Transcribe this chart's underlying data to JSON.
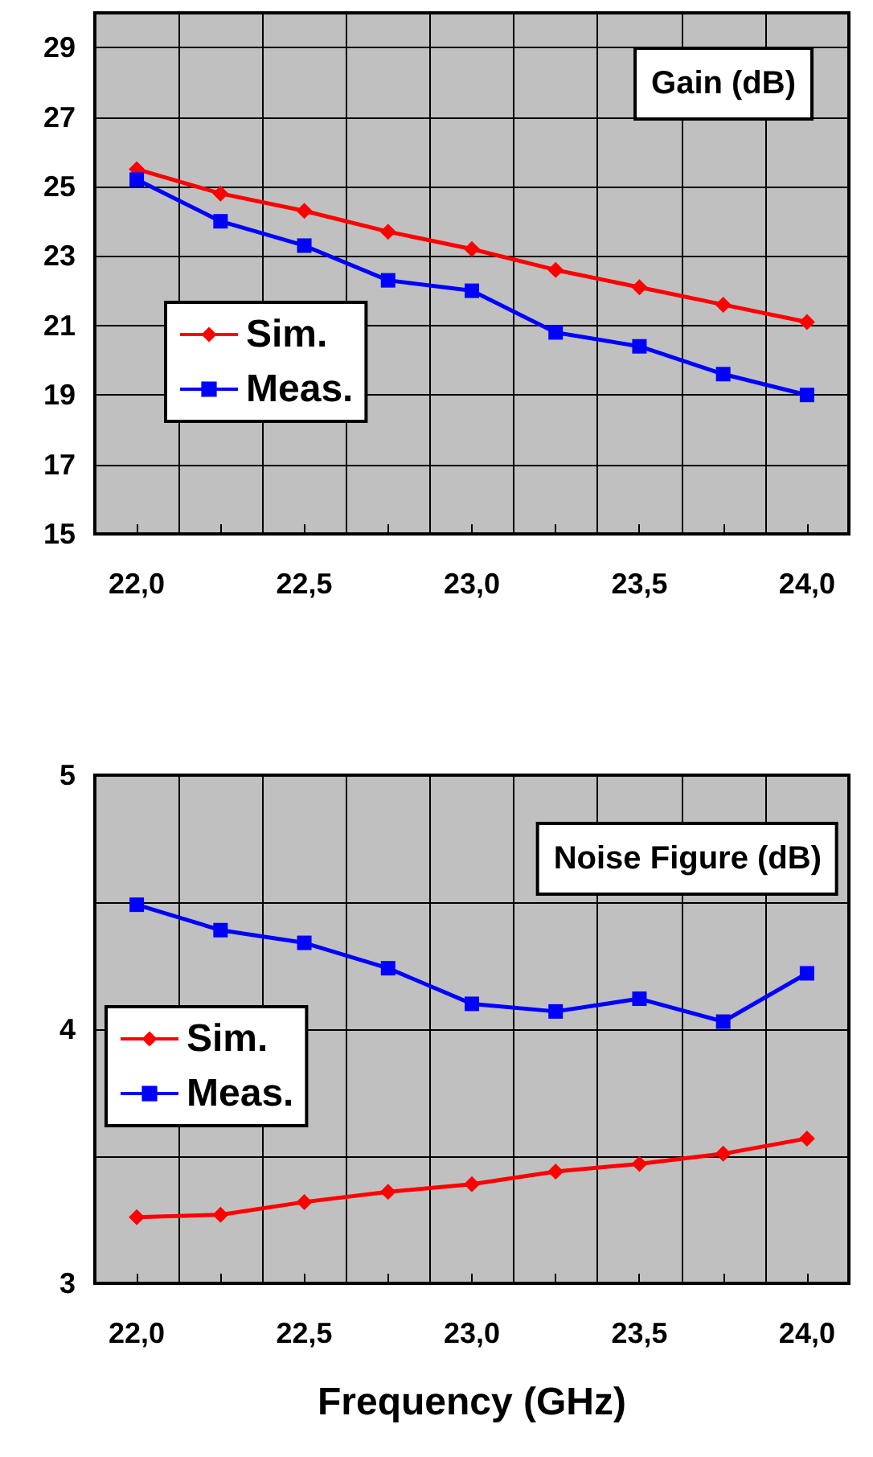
{
  "chart_data": [
    {
      "type": "line",
      "title": "Gain (dB)",
      "categories": [
        "22,0",
        null,
        "22,5",
        null,
        "23,0",
        null,
        "23,5",
        null,
        "24,0"
      ],
      "ylim": [
        15,
        30
      ],
      "yticks": [
        15,
        17,
        19,
        21,
        23,
        25,
        27,
        29
      ],
      "grid": true,
      "legend": "left",
      "series": [
        {
          "name": "Sim.",
          "color": "#ff0000",
          "marker": "diamond",
          "values": [
            25.5,
            24.8,
            24.3,
            23.7,
            23.2,
            22.6,
            22.1,
            21.6,
            21.1
          ]
        },
        {
          "name": "Meas.",
          "color": "#0000ff",
          "marker": "square",
          "values": [
            25.2,
            24.0,
            23.3,
            22.3,
            22.0,
            20.8,
            20.4,
            19.6,
            19.0
          ]
        }
      ]
    },
    {
      "type": "line",
      "title": "Noise Figure (dB)",
      "xlabel": "Frequency (GHz)",
      "categories": [
        "22,0",
        null,
        "22,5",
        null,
        "23,0",
        null,
        "23,5",
        null,
        "24,0"
      ],
      "ylim": [
        3,
        5
      ],
      "yticks": [
        3,
        {
          "value": 3.5,
          "label": null
        },
        4,
        {
          "value": 4.5,
          "label": null
        },
        5
      ],
      "grid": true,
      "legend": "left",
      "series": [
        {
          "name": "Sim.",
          "color": "#ff0000",
          "marker": "diamond",
          "values": [
            3.26,
            3.27,
            3.32,
            3.36,
            3.39,
            3.44,
            3.47,
            3.51,
            3.57
          ]
        },
        {
          "name": "Meas.",
          "color": "#0000ff",
          "marker": "square",
          "values": [
            4.49,
            4.39,
            4.34,
            4.24,
            4.1,
            4.07,
            4.12,
            4.03,
            4.22
          ]
        }
      ]
    }
  ]
}
